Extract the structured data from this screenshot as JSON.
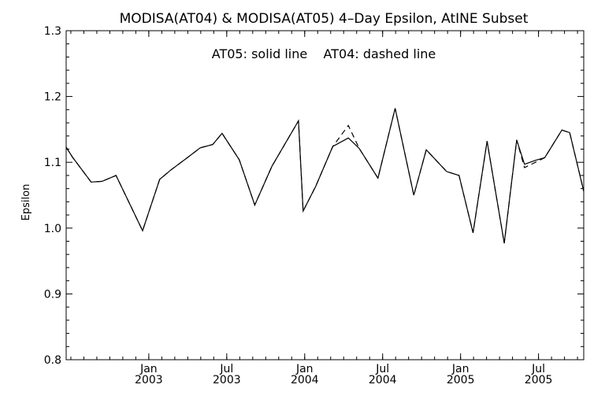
{
  "chart_data": {
    "type": "line",
    "title": "MODISA(AT04) & MODISA(AT05) 4–Day Epsilon, AtINE Subset",
    "annotation": "AT05: solid line    AT04: dashed line",
    "xlabel": "",
    "ylabel": "Epsilon",
    "ylim": [
      0.8,
      1.3
    ],
    "y_ticks": [
      "0.8",
      "0.9",
      "1.0",
      "1.1",
      "1.2",
      "1.3"
    ],
    "x_ticks": [
      {
        "month": "Jan",
        "year": "2003",
        "x": 2003.0
      },
      {
        "month": "Jul",
        "year": "2003",
        "x": 2003.5
      },
      {
        "month": "Jan",
        "year": "2004",
        "x": 2004.0
      },
      {
        "month": "Jul",
        "year": "2004",
        "x": 2004.5
      },
      {
        "month": "Jan",
        "year": "2005",
        "x": 2005.0
      },
      {
        "month": "Jul",
        "year": "2005",
        "x": 2005.5
      }
    ],
    "xlim": [
      2002.47,
      2005.79
    ],
    "grid": false,
    "series": [
      {
        "name": "AT05",
        "style": "solid",
        "x": [
          2002.47,
          2002.51,
          2002.63,
          2002.7,
          2002.79,
          2002.96,
          2003.07,
          2003.14,
          2003.23,
          2003.33,
          2003.41,
          2003.47,
          2003.58,
          2003.68,
          2003.79,
          2003.96,
          2003.99,
          2004.07,
          2004.18,
          2004.28,
          2004.35,
          2004.47,
          2004.58,
          2004.7,
          2004.78,
          2004.91,
          2004.99,
          2005.08,
          2005.17,
          2005.28,
          2005.36,
          2005.41,
          2005.48,
          2005.54,
          2005.65,
          2005.7,
          2005.79
        ],
        "y": [
          1.123,
          1.108,
          1.07,
          1.071,
          1.08,
          0.996,
          1.074,
          1.088,
          1.104,
          1.122,
          1.127,
          1.144,
          1.104,
          1.035,
          1.094,
          1.163,
          1.026,
          1.063,
          1.124,
          1.137,
          1.121,
          1.076,
          1.182,
          1.05,
          1.119,
          1.086,
          1.08,
          0.993,
          1.132,
          0.977,
          1.134,
          1.097,
          1.103,
          1.107,
          1.149,
          1.145,
          1.056
        ]
      },
      {
        "name": "AT04",
        "style": "dashed",
        "x": [
          2002.47,
          2002.51,
          2002.63,
          2002.7,
          2002.79,
          2002.96,
          2003.07,
          2003.14,
          2003.23,
          2003.33,
          2003.41,
          2003.47,
          2003.58,
          2003.68,
          2003.79,
          2003.96,
          2003.99,
          2004.07,
          2004.18,
          2004.28,
          2004.35,
          2004.47,
          2004.58,
          2004.7,
          2004.78,
          2004.91,
          2004.99,
          2005.08,
          2005.17,
          2005.28,
          2005.36,
          2005.41,
          2005.48,
          2005.54,
          2005.65,
          2005.7,
          2005.79
        ],
        "y": [
          1.123,
          1.108,
          1.07,
          1.071,
          1.08,
          0.996,
          1.074,
          1.088,
          1.104,
          1.122,
          1.127,
          1.144,
          1.104,
          1.035,
          1.094,
          1.163,
          1.026,
          1.063,
          1.124,
          1.156,
          1.121,
          1.076,
          1.182,
          1.05,
          1.119,
          1.086,
          1.08,
          0.993,
          1.132,
          0.977,
          1.134,
          1.092,
          1.1,
          1.107,
          1.149,
          1.145,
          1.056
        ]
      }
    ]
  }
}
